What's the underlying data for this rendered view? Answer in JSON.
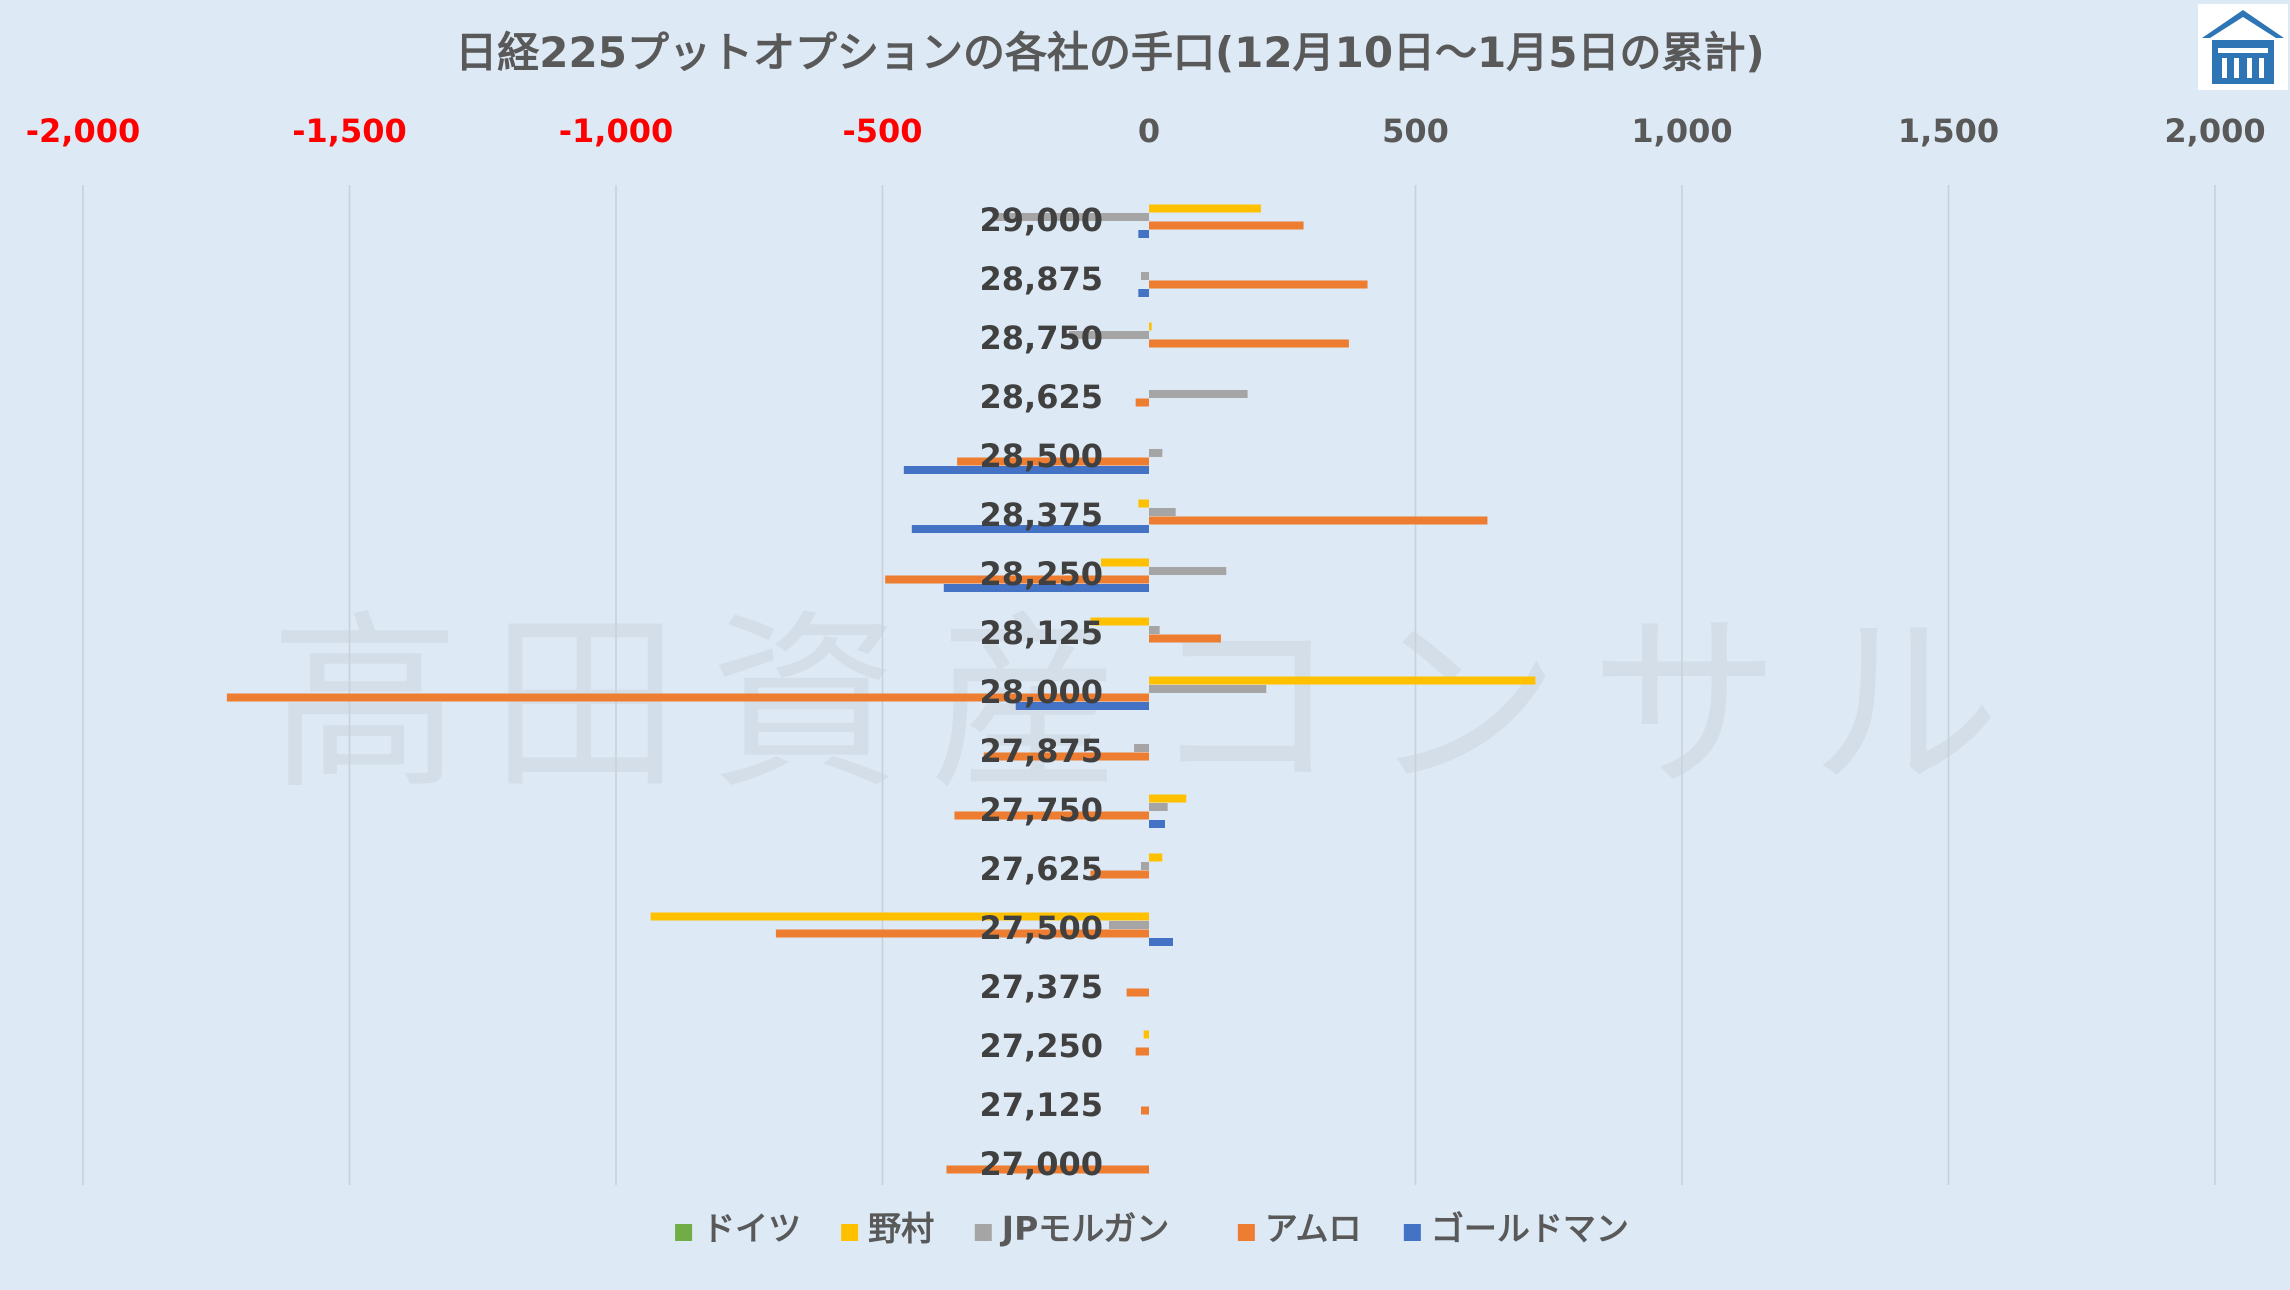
{
  "chart_data": {
    "type": "bar",
    "orientation": "horizontal",
    "title": "日経225プットオプションの各社の手口(12月10日～1月5日の累計)",
    "watermark": "高田資産コンサル",
    "xlim": [
      -2000,
      2000
    ],
    "x_ticks": [
      {
        "value": -2000,
        "label": "-2,000"
      },
      {
        "value": -1500,
        "label": "-1,500"
      },
      {
        "value": -1000,
        "label": "-1,000"
      },
      {
        "value": -500,
        "label": "-500"
      },
      {
        "value": 0,
        "label": "0"
      },
      {
        "value": 500,
        "label": "500"
      },
      {
        "value": 1000,
        "label": "1,000"
      },
      {
        "value": 1500,
        "label": "1,500"
      },
      {
        "value": 2000,
        "label": "2,000"
      }
    ],
    "categories": [
      "29,000",
      "28,875",
      "28,750",
      "28,625",
      "28,500",
      "28,375",
      "28,250",
      "28,125",
      "28,000",
      "27,875",
      "27,750",
      "27,625",
      "27,500",
      "27,375",
      "27,250",
      "27,125",
      "27,000"
    ],
    "series": [
      {
        "name": "ドイツ",
        "color": "#70ad47",
        "values": [
          0,
          0,
          0,
          0,
          0,
          0,
          0,
          0,
          0,
          0,
          0,
          0,
          0,
          0,
          0,
          0,
          0
        ]
      },
      {
        "name": "野村",
        "color": "#ffc000",
        "values": [
          210,
          0,
          5,
          0,
          0,
          -20,
          -90,
          -110,
          725,
          0,
          70,
          25,
          -935,
          0,
          -10,
          0,
          0
        ]
      },
      {
        "name": "JPモルガン",
        "color": "#a5a5a5",
        "values": [
          -290,
          -15,
          -150,
          185,
          25,
          50,
          145,
          20,
          220,
          -28,
          35,
          -15,
          -75,
          0,
          0,
          0,
          0
        ]
      },
      {
        "name": "アムロ",
        "color": "#ed7d31",
        "values": [
          290,
          410,
          375,
          -25,
          -360,
          635,
          -495,
          135,
          -1730,
          -310,
          -365,
          -110,
          -700,
          -42,
          -25,
          -15,
          -380
        ]
      },
      {
        "name": "ゴールドマン",
        "color": "#4472c4",
        "values": [
          -20,
          -20,
          0,
          0,
          -460,
          -445,
          -385,
          0,
          -250,
          0,
          30,
          0,
          45,
          0,
          0,
          0,
          0
        ]
      }
    ],
    "colors": {
      "negative_tick": "#ff0000",
      "positive_tick": "#595959",
      "grid": "#c8d0d8",
      "text": "#595959",
      "category": "#404040"
    },
    "grid": true,
    "legend_position": "bottom"
  },
  "logo": {
    "name": "house-logo-icon",
    "color": "#2e75b6"
  }
}
